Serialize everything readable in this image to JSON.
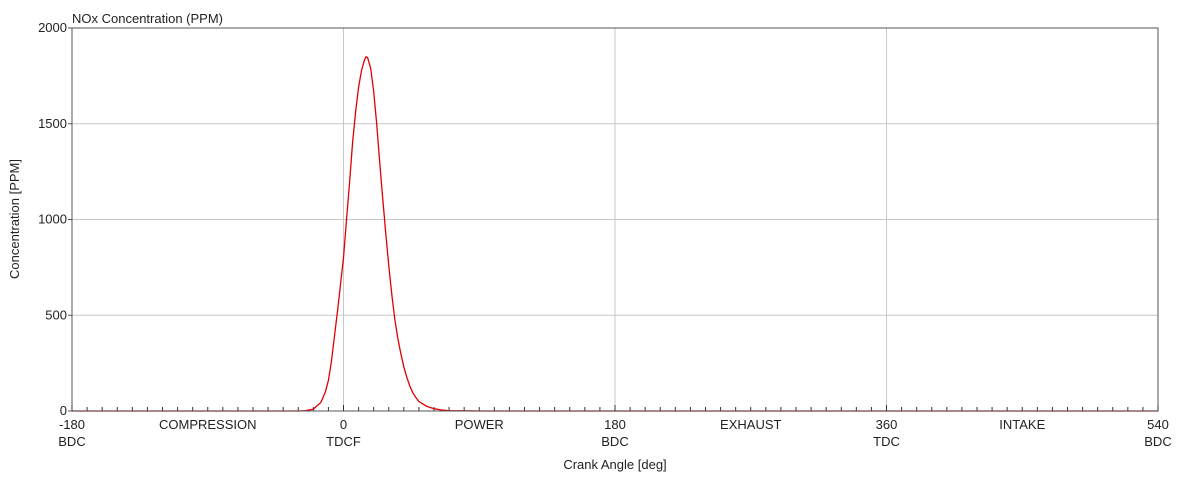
{
  "chart_data": {
    "type": "line",
    "title": "NOx Concentration (PPM)",
    "xlabel": "Crank Angle [deg]",
    "ylabel": "Concentration [PPM]",
    "xlim": [
      -180,
      540
    ],
    "ylim": [
      0,
      2000
    ],
    "grid": true,
    "y_ticks": [
      "0",
      "500",
      "1000",
      "1500",
      "2000"
    ],
    "x_ticks": [
      {
        "value": -180,
        "label": "-180",
        "sublabel": "BDC"
      },
      {
        "value": 0,
        "label": "0",
        "sublabel": "TDCF"
      },
      {
        "value": 180,
        "label": "180",
        "sublabel": "BDC"
      },
      {
        "value": 360,
        "label": "360",
        "sublabel": "TDC"
      },
      {
        "value": 540,
        "label": "540",
        "sublabel": "BDC"
      }
    ],
    "phase_labels": [
      {
        "value": -90,
        "label": "COMPRESSION"
      },
      {
        "value": 90,
        "label": "POWER"
      },
      {
        "value": 270,
        "label": "EXHAUST"
      },
      {
        "value": 450,
        "label": "INTAKE"
      }
    ],
    "series": [
      {
        "color": "#e00000",
        "x": [
          -180,
          -40,
          -30,
          -25,
          -20,
          -15,
          -12,
          -10,
          -8,
          -6,
          -4,
          -2,
          0,
          2,
          4,
          6,
          8,
          10,
          12,
          14,
          15,
          16,
          18,
          20,
          22,
          24,
          26,
          28,
          30,
          32,
          34,
          36,
          38,
          40,
          42,
          44,
          46,
          48,
          50,
          55,
          60,
          65,
          70,
          80,
          90,
          540
        ],
        "y": [
          0,
          0,
          0,
          2,
          10,
          45,
          100,
          160,
          260,
          390,
          520,
          660,
          800,
          1000,
          1190,
          1400,
          1560,
          1690,
          1780,
          1835,
          1850,
          1845,
          1790,
          1670,
          1500,
          1300,
          1110,
          930,
          760,
          610,
          480,
          380,
          300,
          230,
          175,
          130,
          95,
          70,
          50,
          25,
          12,
          5,
          2,
          1,
          0,
          0
        ]
      }
    ]
  }
}
